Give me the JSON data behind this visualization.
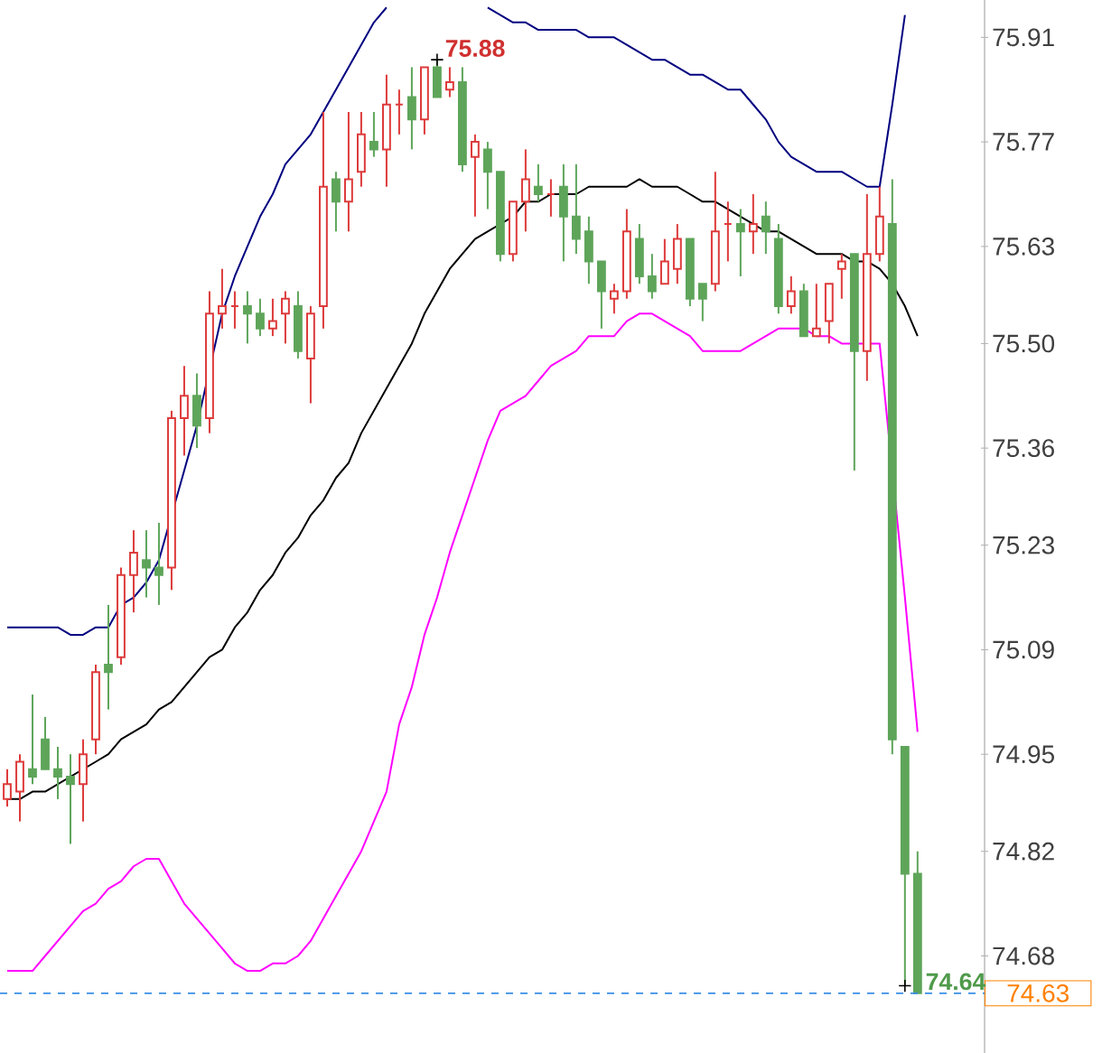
{
  "chart_data": {
    "type": "candlestick",
    "categories": [
      null,
      null,
      null,
      null,
      null,
      null,
      null,
      null,
      null,
      null,
      null,
      null,
      null,
      null,
      null,
      null,
      null,
      null,
      null,
      null,
      null,
      null,
      null,
      null,
      null,
      null,
      null,
      null,
      null,
      null,
      null,
      null,
      null,
      null,
      null,
      null,
      null,
      null,
      null,
      null,
      null,
      null,
      null,
      null,
      null,
      null,
      null,
      null,
      null,
      null,
      null,
      null,
      null,
      null,
      null,
      null,
      null,
      null,
      null,
      null,
      null,
      null,
      null,
      null,
      null,
      null,
      null,
      null,
      null,
      null,
      null,
      null,
      null
    ],
    "ohlc": [
      [
        74.89,
        74.93,
        74.88,
        74.91
      ],
      [
        74.9,
        74.95,
        74.86,
        74.94
      ],
      [
        74.93,
        75.03,
        74.91,
        74.92
      ],
      [
        74.97,
        75.0,
        74.93,
        74.93
      ],
      [
        74.93,
        74.96,
        74.89,
        74.92
      ],
      [
        74.92,
        74.95,
        74.83,
        74.91
      ],
      [
        74.91,
        74.97,
        74.86,
        74.95
      ],
      [
        74.97,
        75.07,
        74.95,
        75.06
      ],
      [
        75.07,
        75.15,
        75.01,
        75.06
      ],
      [
        75.08,
        75.2,
        75.07,
        75.19
      ],
      [
        75.19,
        75.25,
        75.14,
        75.22
      ],
      [
        75.21,
        75.25,
        75.16,
        75.2
      ],
      [
        75.2,
        75.26,
        75.15,
        75.19
      ],
      [
        75.2,
        75.41,
        75.17,
        75.4
      ],
      [
        75.4,
        75.47,
        75.35,
        75.43
      ],
      [
        75.43,
        75.46,
        75.36,
        75.39
      ],
      [
        75.4,
        75.57,
        75.38,
        75.54
      ],
      [
        75.54,
        75.6,
        75.52,
        75.55
      ],
      [
        75.55,
        75.57,
        75.52,
        75.55
      ],
      [
        75.55,
        75.57,
        75.5,
        75.54
      ],
      [
        75.54,
        75.56,
        75.51,
        75.52
      ],
      [
        75.52,
        75.56,
        75.51,
        75.53
      ],
      [
        75.54,
        75.57,
        75.5,
        75.56
      ],
      [
        75.55,
        75.57,
        75.48,
        75.49
      ],
      [
        75.48,
        75.55,
        75.42,
        75.54
      ],
      [
        75.55,
        75.81,
        75.52,
        75.71
      ],
      [
        75.72,
        75.73,
        75.65,
        75.69
      ],
      [
        75.69,
        75.81,
        75.65,
        75.72
      ],
      [
        75.73,
        75.81,
        75.71,
        75.78
      ],
      [
        75.77,
        75.81,
        75.75,
        75.76
      ],
      [
        75.76,
        75.86,
        75.71,
        75.82
      ],
      [
        75.82,
        75.84,
        75.78,
        75.82
      ],
      [
        75.83,
        75.87,
        75.76,
        75.8
      ],
      [
        75.8,
        75.87,
        75.78,
        75.87
      ],
      [
        75.87,
        75.88,
        75.83,
        75.83
      ],
      [
        75.84,
        75.87,
        75.83,
        75.85
      ],
      [
        75.85,
        75.87,
        75.73,
        75.74
      ],
      [
        75.75,
        75.78,
        75.67,
        75.77
      ],
      [
        75.76,
        75.77,
        75.68,
        75.73
      ],
      [
        75.73,
        75.73,
        75.61,
        75.62
      ],
      [
        75.62,
        75.69,
        75.61,
        75.69
      ],
      [
        75.69,
        75.76,
        75.65,
        75.72
      ],
      [
        75.71,
        75.74,
        75.69,
        75.7
      ],
      [
        75.7,
        75.72,
        75.67,
        75.7
      ],
      [
        75.71,
        75.74,
        75.61,
        75.67
      ],
      [
        75.67,
        75.74,
        75.62,
        75.64
      ],
      [
        75.65,
        75.67,
        75.58,
        75.61
      ],
      [
        75.61,
        75.61,
        75.52,
        75.57
      ],
      [
        75.56,
        75.58,
        75.54,
        75.57
      ],
      [
        75.57,
        75.68,
        75.56,
        75.65
      ],
      [
        75.64,
        75.66,
        75.58,
        75.59
      ],
      [
        75.59,
        75.62,
        75.56,
        75.57
      ],
      [
        75.58,
        75.64,
        75.58,
        75.61
      ],
      [
        75.6,
        75.66,
        75.58,
        75.64
      ],
      [
        75.64,
        75.64,
        75.55,
        75.56
      ],
      [
        75.58,
        75.58,
        75.53,
        75.56
      ],
      [
        75.58,
        75.73,
        75.57,
        75.65
      ],
      [
        75.66,
        75.69,
        75.61,
        75.66
      ],
      [
        75.66,
        75.68,
        75.59,
        75.65
      ],
      [
        75.65,
        75.7,
        75.62,
        75.66
      ],
      [
        75.67,
        75.69,
        75.62,
        75.65
      ],
      [
        75.64,
        75.66,
        75.54,
        75.55
      ],
      [
        75.55,
        75.59,
        75.54,
        75.57
      ],
      [
        75.57,
        75.58,
        75.51,
        75.51
      ],
      [
        75.51,
        75.58,
        75.51,
        75.52
      ],
      [
        75.53,
        75.58,
        75.5,
        75.58
      ],
      [
        75.6,
        75.62,
        75.56,
        75.61
      ],
      [
        75.62,
        75.62,
        75.33,
        75.49
      ],
      [
        75.49,
        75.7,
        75.45,
        75.62
      ],
      [
        75.62,
        75.71,
        75.61,
        75.67
      ],
      [
        75.66,
        75.72,
        74.95,
        74.97
      ],
      [
        74.96,
        74.96,
        74.64,
        74.79
      ],
      [
        74.79,
        74.82,
        74.63,
        74.63
      ]
    ],
    "series": [
      {
        "type": "line",
        "color": "#000080",
        "values": [
          75.12,
          75.12,
          75.12,
          75.12,
          75.12,
          75.11,
          75.11,
          75.12,
          75.12,
          75.15,
          75.16,
          75.18,
          75.21,
          null,
          75.33,
          75.39,
          null,
          75.54,
          75.59,
          75.63,
          75.67,
          75.7,
          75.74,
          75.76,
          75.78,
          75.81,
          75.84,
          75.87,
          75.9,
          75.93,
          75.95,
          null,
          null,
          null,
          null,
          null,
          null,
          null,
          75.95,
          75.94,
          75.93,
          75.93,
          75.92,
          75.92,
          75.92,
          75.92,
          75.91,
          75.91,
          75.91,
          75.9,
          75.89,
          75.88,
          75.88,
          75.87,
          75.86,
          75.86,
          75.85,
          75.84,
          75.84,
          75.82,
          75.8,
          75.77,
          75.75,
          75.74,
          75.73,
          75.73,
          75.73,
          75.72,
          75.71,
          75.71,
          75.82,
          75.94,
          null
        ]
      },
      {
        "type": "line",
        "color": "#000000",
        "values": [
          74.89,
          74.89,
          74.9,
          74.9,
          74.91,
          74.92,
          74.93,
          74.94,
          74.95,
          74.97,
          74.98,
          74.99,
          75.01,
          75.02,
          75.04,
          75.06,
          75.08,
          75.09,
          75.12,
          75.14,
          75.17,
          75.19,
          75.22,
          75.24,
          75.27,
          75.29,
          75.32,
          75.34,
          75.38,
          75.41,
          75.44,
          75.47,
          75.5,
          75.54,
          75.57,
          75.6,
          75.62,
          75.64,
          75.65,
          75.66,
          75.67,
          75.69,
          75.69,
          75.7,
          75.7,
          75.7,
          75.71,
          75.71,
          75.71,
          75.71,
          75.72,
          75.71,
          75.71,
          75.71,
          75.7,
          75.69,
          75.69,
          75.68,
          75.67,
          75.66,
          75.65,
          75.65,
          75.64,
          75.63,
          75.62,
          75.62,
          75.62,
          75.61,
          75.61,
          75.6,
          75.58,
          75.55,
          75.51
        ]
      },
      {
        "type": "line",
        "color": "#ff00ff",
        "values": [
          74.66,
          74.66,
          74.66,
          74.68,
          74.7,
          74.72,
          74.74,
          74.75,
          74.77,
          74.78,
          74.8,
          74.81,
          74.81,
          74.78,
          74.75,
          74.73,
          74.71,
          74.69,
          74.67,
          74.66,
          74.66,
          74.67,
          74.67,
          74.68,
          74.7,
          74.73,
          74.76,
          74.79,
          74.82,
          74.86,
          74.9,
          74.99,
          75.04,
          75.11,
          75.16,
          75.22,
          75.27,
          75.32,
          75.37,
          75.41,
          75.42,
          75.43,
          75.45,
          75.47,
          75.48,
          75.49,
          75.51,
          75.51,
          75.51,
          75.53,
          75.54,
          75.54,
          75.53,
          75.52,
          75.51,
          75.49,
          75.49,
          75.49,
          75.49,
          75.5,
          75.51,
          75.52,
          75.52,
          75.52,
          75.51,
          75.51,
          75.5,
          75.5,
          75.5,
          75.5,
          null,
          75.16,
          74.98
        ]
      }
    ],
    "ylim": [
      74.55,
      75.96
    ],
    "yticks": [
      75.91,
      75.77,
      75.63,
      {
        "value": 75.5,
        "label": "75.50"
      },
      75.36,
      75.23,
      75.09,
      74.95,
      74.82,
      74.68
    ],
    "tick_labels": "y",
    "grid": false,
    "annotations": [
      "75.88",
      "74.64"
    ],
    "ref_lines": [
      {
        "axis": "y",
        "value": 74.63,
        "label": "74.63",
        "color": "#3a8ee6",
        "line_style": "dashed"
      }
    ]
  }
}
